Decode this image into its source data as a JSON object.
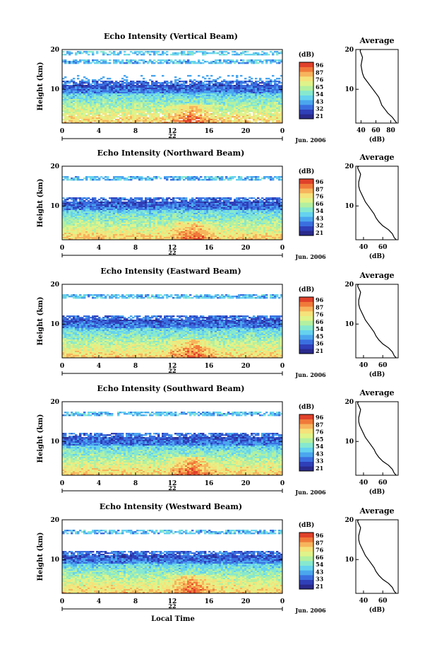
{
  "x_axis_label": "Local Time",
  "colorbar_unit": "(dB)",
  "colors": {
    "colormap": [
      "#2a2a8c",
      "#2f3fb8",
      "#3a6fe0",
      "#4ba6ee",
      "#66d2ef",
      "#86e8cf",
      "#b3f0a0",
      "#dff38a",
      "#f5e27a",
      "#f7b45c",
      "#f07a3a",
      "#e0412a"
    ]
  },
  "chart_data": [
    {
      "type": "heatmap",
      "title": "Echo Intensity (Vertical Beam)",
      "ylabel": "Height (km)",
      "xticks": [
        "0",
        "4",
        "8",
        "12",
        "16",
        "20",
        "0"
      ],
      "xlim": [
        0,
        24
      ],
      "ylim": [
        1.5,
        20
      ],
      "yticks": [
        "20",
        "10"
      ],
      "date_day": "22",
      "date_month_year": "Jun. 2006",
      "colorbar": {
        "unit": "(dB)",
        "ticks": [
          "96",
          "87",
          "76",
          "65",
          "54",
          "43",
          "32",
          "21"
        ],
        "range": [
          21,
          96
        ]
      },
      "profile": {
        "title": "Average",
        "xlabel": "(dB)",
        "xticks": [
          "40",
          "60",
          "80"
        ],
        "xlim": [
          33,
          90
        ],
        "ylim": [
          1.5,
          20
        ],
        "yticks": [
          "20",
          "10"
        ],
        "x": [
          88,
          86,
          82,
          76,
          72,
          68,
          66,
          64,
          60,
          56,
          52,
          48,
          44,
          42,
          41,
          40,
          41,
          42,
          40,
          39,
          39,
          40
        ],
        "y": [
          1.5,
          2,
          3,
          4,
          5,
          6,
          7,
          8,
          9,
          10,
          11,
          12,
          13,
          14,
          15,
          16,
          17,
          18,
          19,
          19.5,
          19.8,
          20
        ]
      }
    },
    {
      "type": "heatmap",
      "title": "Echo Intensity (Northward Beam)",
      "ylabel": "Height (km)",
      "xticks": [
        "0",
        "4",
        "8",
        "12",
        "16",
        "20",
        "0"
      ],
      "xlim": [
        0,
        24
      ],
      "ylim": [
        1.5,
        20
      ],
      "yticks": [
        "20",
        "10"
      ],
      "date_day": "22",
      "date_month_year": "Jun. 2006",
      "colorbar": {
        "unit": "(dB)",
        "ticks": [
          "96",
          "87",
          "76",
          "66",
          "54",
          "43",
          "32",
          "21"
        ],
        "range": [
          21,
          96
        ]
      },
      "profile": {
        "title": "Average",
        "xlabel": "(dB)",
        "xticks": [
          "40",
          "60"
        ],
        "xlim": [
          32,
          76
        ],
        "ylim": [
          1.5,
          20
        ],
        "yticks": [
          "20",
          "10"
        ],
        "x": [
          74,
          72,
          70,
          66,
          60,
          56,
          53,
          51,
          48,
          45,
          42,
          40,
          38,
          36,
          35,
          35,
          36,
          37,
          35,
          34,
          34,
          35
        ],
        "y": [
          1.5,
          2,
          3,
          4,
          5,
          6,
          7,
          8,
          9,
          10,
          11,
          12,
          13,
          14,
          15,
          16,
          17,
          18,
          19,
          19.5,
          19.8,
          20
        ]
      }
    },
    {
      "type": "heatmap",
      "title": "Echo Intensity (Eastward Beam)",
      "ylabel": "Height (km)",
      "xticks": [
        "0",
        "4",
        "8",
        "12",
        "16",
        "20",
        "0"
      ],
      "xlim": [
        0,
        24
      ],
      "ylim": [
        1.5,
        20
      ],
      "yticks": [
        "20",
        "10"
      ],
      "date_day": "22",
      "date_month_year": "Jun. 2006",
      "colorbar": {
        "unit": "(dB)",
        "ticks": [
          "96",
          "87",
          "76",
          "66",
          "54",
          "45",
          "36",
          "21"
        ],
        "range": [
          21,
          96
        ]
      },
      "profile": {
        "title": "Average",
        "xlabel": "(dB)",
        "xticks": [
          "40",
          "60"
        ],
        "xlim": [
          32,
          76
        ],
        "ylim": [
          1.5,
          20
        ],
        "yticks": [
          "20",
          "10"
        ],
        "x": [
          74,
          72,
          70,
          66,
          60,
          56,
          53,
          51,
          48,
          45,
          42,
          40,
          38,
          36,
          35,
          35,
          36,
          37,
          35,
          34,
          34,
          35
        ],
        "y": [
          1.5,
          2,
          3,
          4,
          5,
          6,
          7,
          8,
          9,
          10,
          11,
          12,
          13,
          14,
          15,
          16,
          17,
          18,
          19,
          19.5,
          19.8,
          20
        ]
      }
    },
    {
      "type": "heatmap",
      "title": "Echo Intensity (Southward Beam)",
      "ylabel": "Height (km)",
      "xticks": [
        "0",
        "4",
        "8",
        "12",
        "16",
        "20",
        "0"
      ],
      "xlim": [
        0,
        24
      ],
      "ylim": [
        1.5,
        20
      ],
      "yticks": [
        "20",
        "10"
      ],
      "date_day": "22",
      "date_month_year": "Jun. 2006",
      "colorbar": {
        "unit": "(dB)",
        "ticks": [
          "96",
          "87",
          "76",
          "65",
          "54",
          "43",
          "33",
          "21"
        ],
        "range": [
          21,
          96
        ]
      },
      "profile": {
        "title": "Average",
        "xlabel": "(dB)",
        "xticks": [
          "40",
          "60"
        ],
        "xlim": [
          32,
          76
        ],
        "ylim": [
          1.5,
          20
        ],
        "yticks": [
          "20",
          "10"
        ],
        "x": [
          74,
          72,
          70,
          66,
          60,
          56,
          53,
          51,
          48,
          45,
          42,
          40,
          38,
          36,
          35,
          35,
          36,
          37,
          35,
          34,
          34,
          35
        ],
        "y": [
          1.5,
          2,
          3,
          4,
          5,
          6,
          7,
          8,
          9,
          10,
          11,
          12,
          13,
          14,
          15,
          16,
          17,
          18,
          19,
          19.5,
          19.8,
          20
        ]
      }
    },
    {
      "type": "heatmap",
      "title": "Echo Intensity (Westward Beam)",
      "ylabel": "Height (km)",
      "xticks": [
        "0",
        "4",
        "8",
        "12",
        "16",
        "20",
        "0"
      ],
      "xlim": [
        0,
        24
      ],
      "ylim": [
        1.5,
        20
      ],
      "yticks": [
        "20",
        "10"
      ],
      "date_day": "22",
      "date_month_year": "Jun. 2006",
      "colorbar": {
        "unit": "(dB)",
        "ticks": [
          "96",
          "87",
          "76",
          "66",
          "54",
          "43",
          "33",
          "21"
        ],
        "range": [
          21,
          96
        ]
      },
      "profile": {
        "title": "Average",
        "xlabel": "(dB)",
        "xticks": [
          "40",
          "60"
        ],
        "xlim": [
          32,
          76
        ],
        "ylim": [
          1.5,
          20
        ],
        "yticks": [
          "20",
          "10"
        ],
        "x": [
          74,
          72,
          70,
          66,
          60,
          56,
          53,
          51,
          48,
          45,
          42,
          40,
          38,
          36,
          35,
          35,
          36,
          37,
          35,
          34,
          34,
          35
        ],
        "y": [
          1.5,
          2,
          3,
          4,
          5,
          6,
          7,
          8,
          9,
          10,
          11,
          12,
          13,
          14,
          15,
          16,
          17,
          18,
          19,
          19.5,
          19.8,
          20
        ]
      }
    }
  ]
}
